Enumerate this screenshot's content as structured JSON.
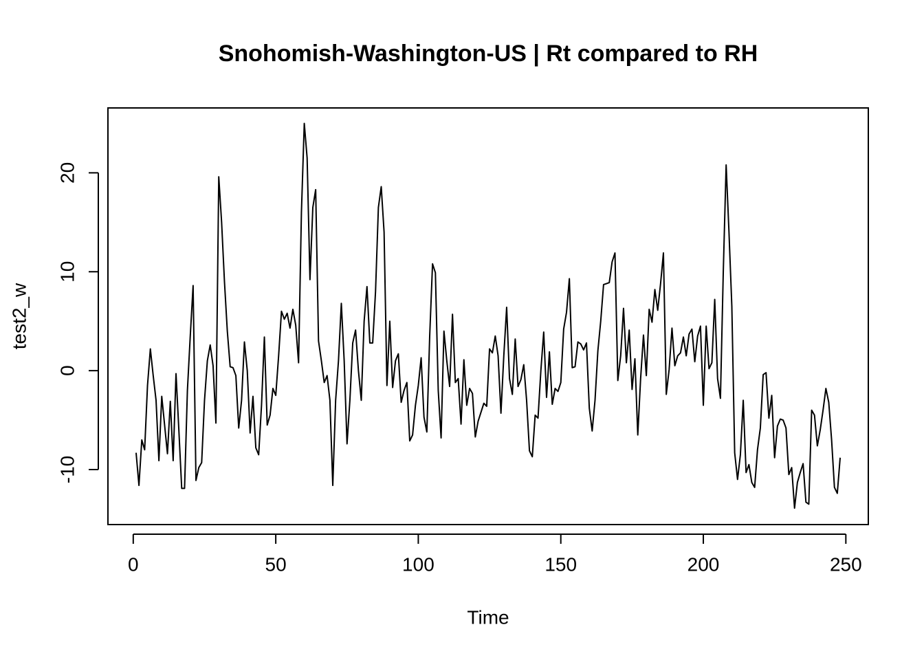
{
  "chart_data": {
    "type": "line",
    "title": "Snohomish-Washington-US | Rt compared to RH",
    "x_label": "Time",
    "y_label": "test2_w",
    "color": "#000000",
    "x": [
      1,
      2,
      3,
      4,
      5,
      6,
      7,
      8,
      9,
      10,
      11,
      12,
      13,
      14,
      15,
      16,
      17,
      18,
      19,
      20,
      21,
      22,
      23,
      24,
      25,
      26,
      27,
      28,
      29,
      30,
      31,
      32,
      33,
      34,
      35,
      36,
      37,
      38,
      39,
      40,
      41,
      42,
      43,
      44,
      45,
      46,
      47,
      48,
      49,
      50,
      51,
      52,
      53,
      54,
      55,
      56,
      57,
      58,
      59,
      60,
      61,
      62,
      63,
      64,
      65,
      66,
      67,
      68,
      69,
      70,
      71,
      72,
      73,
      74,
      75,
      76,
      77,
      78,
      79,
      80,
      81,
      82,
      83,
      84,
      85,
      86,
      87,
      88,
      89,
      90,
      91,
      92,
      93,
      94,
      95,
      96,
      97,
      98,
      99,
      100,
      101,
      102,
      103,
      104,
      105,
      106,
      107,
      108,
      109,
      110,
      111,
      112,
      113,
      114,
      115,
      116,
      117,
      118,
      119,
      120,
      121,
      122,
      123,
      124,
      125,
      126,
      127,
      128,
      129,
      130,
      131,
      132,
      133,
      134,
      135,
      136,
      137,
      138,
      139,
      140,
      141,
      142,
      143,
      144,
      145,
      146,
      147,
      148,
      149,
      150,
      151,
      152,
      153,
      154,
      155,
      156,
      157,
      158,
      159,
      160,
      161,
      162,
      163,
      164,
      165,
      166,
      167,
      168,
      169,
      170,
      171,
      172,
      173,
      174,
      175,
      176,
      177,
      178,
      179,
      180,
      181,
      182,
      183,
      184,
      185,
      186,
      187,
      188,
      189,
      190,
      191,
      192,
      193,
      194,
      195,
      196,
      197,
      198,
      199,
      200,
      201,
      202,
      203,
      204,
      205,
      206,
      207,
      208,
      209,
      210,
      211,
      212,
      213,
      214,
      215,
      216,
      217,
      218,
      219,
      220,
      221,
      222,
      223,
      224,
      225,
      226,
      227,
      228,
      229,
      230,
      231,
      232,
      233,
      234,
      235,
      236,
      237,
      238,
      239,
      240,
      241,
      242,
      243,
      244,
      245,
      246,
      247,
      248
    ],
    "values": [
      -8.3,
      -11.6,
      -7,
      -8,
      -1.5,
      2.2,
      -0.5,
      -3,
      -9.1,
      -2.6,
      -5.5,
      -8.4,
      -3.1,
      -9.1,
      -0.3,
      -6,
      -11.9,
      -11.9,
      -2,
      3.5,
      8.6,
      -11.1,
      -9.8,
      -9.3,
      -3,
      1,
      2.6,
      0.5,
      -5.3,
      19.6,
      15,
      9,
      4,
      0.4,
      0.3,
      -0.5,
      -5.8,
      -3,
      2.9,
      0,
      -6.3,
      -2.6,
      -7.8,
      -8.5,
      -3.5,
      3.4,
      -5.5,
      -4.5,
      -1.8,
      -2.5,
      1.5,
      6,
      5.2,
      5.8,
      4.3,
      6.2,
      4.6,
      0.8,
      16,
      25,
      21.5,
      9.2,
      16.5,
      18.3,
      3,
      1,
      -1.2,
      -0.5,
      -3,
      -11.6,
      -3,
      1,
      6.8,
      1,
      -7.4,
      -3,
      2.8,
      4.1,
      0,
      -3,
      5,
      8.5,
      2.8,
      2.8,
      8,
      16.5,
      18.6,
      14,
      -1.5,
      5,
      -1.7,
      1,
      1.7,
      -3.2,
      -2,
      -1.2,
      -7.1,
      -6.5,
      -3.5,
      -1.5,
      1.3,
      -4.7,
      -6.2,
      3.5,
      10.8,
      9.9,
      -2,
      -6.8,
      4,
      1,
      -1.6,
      5.7,
      -1.2,
      -0.8,
      -5.4,
      1.1,
      -3.5,
      -1.8,
      -2.3,
      -6.7,
      -5.1,
      -4.2,
      -3.3,
      -3.6,
      2.2,
      1.8,
      3.5,
      1.5,
      -4.3,
      1.5,
      6.4,
      -0.8,
      -2.4,
      3.2,
      -1.6,
      -0.9,
      0.6,
      -3,
      -8.1,
      -8.7,
      -4.5,
      -4.8,
      0,
      3.9,
      -2.7,
      1.9,
      -3.4,
      -1.8,
      -2.1,
      -1.2,
      4.2,
      5.9,
      9.3,
      0.3,
      0.4,
      2.9,
      2.7,
      2.1,
      2.8,
      -3.8,
      -6.1,
      -3,
      2,
      5,
      8.7,
      8.8,
      8.9,
      11,
      11.9,
      -1,
      1.5,
      6.3,
      0.8,
      4.1,
      -1.9,
      1.2,
      -6.5,
      -0.8,
      3.6,
      -0.5,
      6.2,
      4.9,
      8.2,
      6.1,
      8.8,
      11.9,
      -2.4,
      0.1,
      4.3,
      0.5,
      1.5,
      1.8,
      3.4,
      1.5,
      3.7,
      4.2,
      0.9,
      3.5,
      4.5,
      -3.5,
      4.5,
      0.2,
      0.8,
      7.2,
      -0.8,
      -2.8,
      10,
      20.8,
      14,
      6.5,
      -8.3,
      -11,
      -8.5,
      -3,
      -10.3,
      -9.5,
      -11.3,
      -11.8,
      -8,
      -5.8,
      -0.4,
      -0.2,
      -4.8,
      -2.5,
      -8.8,
      -5.6,
      -4.9,
      -5,
      -5.8,
      -10.5,
      -9.8,
      -13.9,
      -11.3,
      -10.3,
      -9.4,
      -13.3,
      -13.5,
      -4,
      -4.5,
      -7.6,
      -6,
      -4,
      -1.8,
      -3.2,
      -7,
      -11.8,
      -12.4,
      -8.8
    ],
    "xlim": [
      -8.88,
      257.88
    ],
    "xticks": [
      0,
      50,
      100,
      150,
      200,
      250
    ],
    "ylim": [
      -15.56,
      26.56
    ],
    "yticks": [
      -10,
      0,
      10,
      20
    ]
  }
}
